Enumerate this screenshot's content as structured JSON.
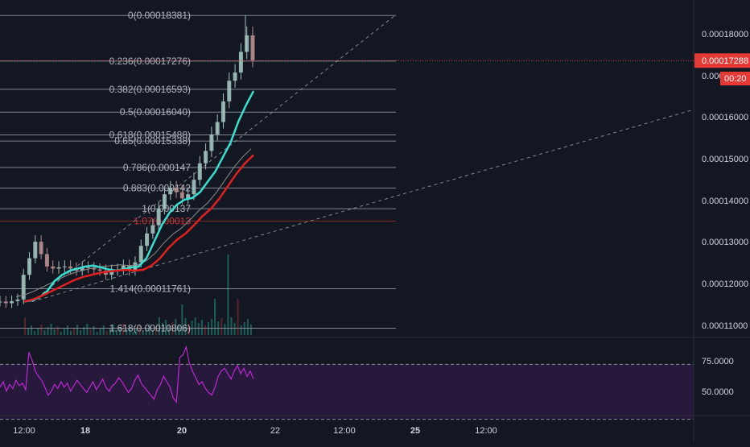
{
  "colors": {
    "background": "#131722",
    "fib_level": "#9598a1",
    "fib_label": "#b2b5be",
    "fib_ext_red": "#9b2a2a",
    "price_line": "#e04040",
    "ma_fast": "#37e0d0",
    "ma_slow": "#e01f1f",
    "ma_thin": "#8c8c8c",
    "candle_up": "#9fbfb9",
    "candle_down": "#b78c8c",
    "volume": "#1f6f66",
    "rsi": "#c026d3",
    "rsi_band": "#2a1a3e",
    "axis_text": "#d1d4dc"
  },
  "price_axis": {
    "ticks": [
      "0.00018000",
      "0.00016000",
      "0.00015000",
      "0.00014000",
      "0.00013000",
      "0.00012000",
      "0.00011000"
    ],
    "hidden_tick": "0.000",
    "current_price": "0.00017288",
    "countdown": "00:20"
  },
  "rsi_axis": {
    "ticks": [
      "75.0000",
      "50.0000"
    ]
  },
  "time_axis": {
    "labels": [
      {
        "text": "12:00",
        "bold": false
      },
      {
        "text": "18",
        "bold": true
      },
      {
        "text": "20",
        "bold": true
      },
      {
        "text": "22",
        "bold": false
      },
      {
        "text": "12:00",
        "bold": false
      },
      {
        "text": "25",
        "bold": true
      },
      {
        "text": "12:00",
        "bold": false
      }
    ]
  },
  "chart_data": {
    "type": "line",
    "y_scale": {
      "range": [
        0.000106,
        0.000186
      ]
    },
    "fib_levels": [
      {
        "ratio": "0",
        "price": 0.00018381,
        "label": "0(0.00018381)"
      },
      {
        "ratio": "0.236",
        "price": 0.00017276,
        "label": "0.236(0.00017276)"
      },
      {
        "ratio": "0.382",
        "price": 0.00016593,
        "label": "0.382(0.00016593)"
      },
      {
        "ratio": "0.5",
        "price": 0.0001604,
        "label": "0.5(0.00016040)"
      },
      {
        "ratio": "0.618",
        "price": 0.00015488,
        "label": "0.618(0.00015488)"
      },
      {
        "ratio": "0.65",
        "price": 0.00015338,
        "label": "0.65(0.00015338)"
      },
      {
        "ratio": "0.786",
        "price": 0.000147,
        "label": "0.786(0.000147"
      },
      {
        "ratio": "0.883",
        "price": 0.000142,
        "label": "0.883(0.000142"
      },
      {
        "ratio": "1",
        "price": 0.000137,
        "label": "1(0.000137"
      },
      {
        "ratio": "1.07",
        "price": 0.000134,
        "label": "1.07(0.00013",
        "extension": true
      },
      {
        "ratio": "1.414",
        "price": 0.00011761,
        "label": "1.414(0.00011761)"
      },
      {
        "ratio": "1.618",
        "price": 0.00010806,
        "label": "1.618(0.00010806)"
      }
    ],
    "close_series": [
      0.0001145,
      0.0001141,
      0.0001146,
      0.000115,
      0.000121,
      0.000125,
      0.000129,
      0.000126,
      0.000123,
      0.0001225,
      0.0001228,
      0.000123,
      0.0001225,
      0.000122,
      0.0001228,
      0.0001226,
      0.0001223,
      0.000122,
      0.000121,
      0.000122,
      0.0001222,
      0.0001232,
      0.000122,
      0.000124,
      0.000128,
      0.000131,
      0.000133,
      0.000137,
      0.0001405,
      0.000142,
      0.000141,
      0.0001395,
      0.0001405,
      0.000144,
      0.000148,
      0.000151,
      0.000155,
      0.000158,
      0.000163,
      0.000168,
      0.00017,
      0.000175,
      0.000179,
      0.000173
    ],
    "ma_fast": [
      0.0001145,
      0.0001148,
      0.0001155,
      0.000117,
      0.0001195,
      0.000121,
      0.000122,
      0.0001225,
      0.000123,
      0.0001232,
      0.0001228,
      0.0001223,
      0.000122,
      0.0001223,
      0.0001228,
      0.000123,
      0.000125,
      0.000129,
      0.000133,
      0.000136,
      0.000138,
      0.0001392,
      0.0001396,
      0.000141,
      0.0001435,
      0.000146,
      0.0001495,
      0.000153,
      0.000158,
      0.000162,
      0.0001655
    ],
    "ma_slow": [
      0.0001145,
      0.000115,
      0.0001158,
      0.0001168,
      0.0001178,
      0.0001188,
      0.0001198,
      0.0001205,
      0.000121,
      0.0001215,
      0.0001218,
      0.000122,
      0.0001222,
      0.000122,
      0.0001222,
      0.0001232,
      0.000125,
      0.0001275,
      0.0001295,
      0.000131,
      0.000133,
      0.0001352,
      0.000137,
      0.0001395,
      0.0001425,
      0.0001455,
      0.000148,
      0.00015
    ],
    "trend_lines": [
      {
        "from": [
          0,
          0.0001145
        ],
        "to": [
          1,
          0.000184
        ]
      },
      {
        "from": [
          0,
          0.0001145
        ],
        "to": [
          1,
          0.000161
        ]
      }
    ],
    "rsi": {
      "range": [
        38,
        92
      ],
      "band": [
        30,
        70
      ],
      "values": [
        58,
        62,
        55,
        60,
        57,
        63,
        59,
        61,
        56,
        84,
        78,
        70,
        66,
        63,
        58,
        52,
        55,
        60,
        57,
        62,
        58,
        61,
        55,
        59,
        63,
        60,
        57,
        54,
        58,
        62,
        56,
        60,
        64,
        58,
        55,
        59,
        61,
        65,
        62,
        58,
        54,
        57,
        63,
        67,
        61,
        58,
        55,
        52,
        49,
        56,
        60,
        66,
        62,
        58,
        50,
        47,
        80,
        82,
        88,
        76,
        70,
        65,
        60,
        62,
        57,
        54,
        52,
        58,
        66,
        70,
        72,
        68,
        64,
        70,
        74,
        68,
        72,
        66,
        70,
        64
      ]
    }
  }
}
